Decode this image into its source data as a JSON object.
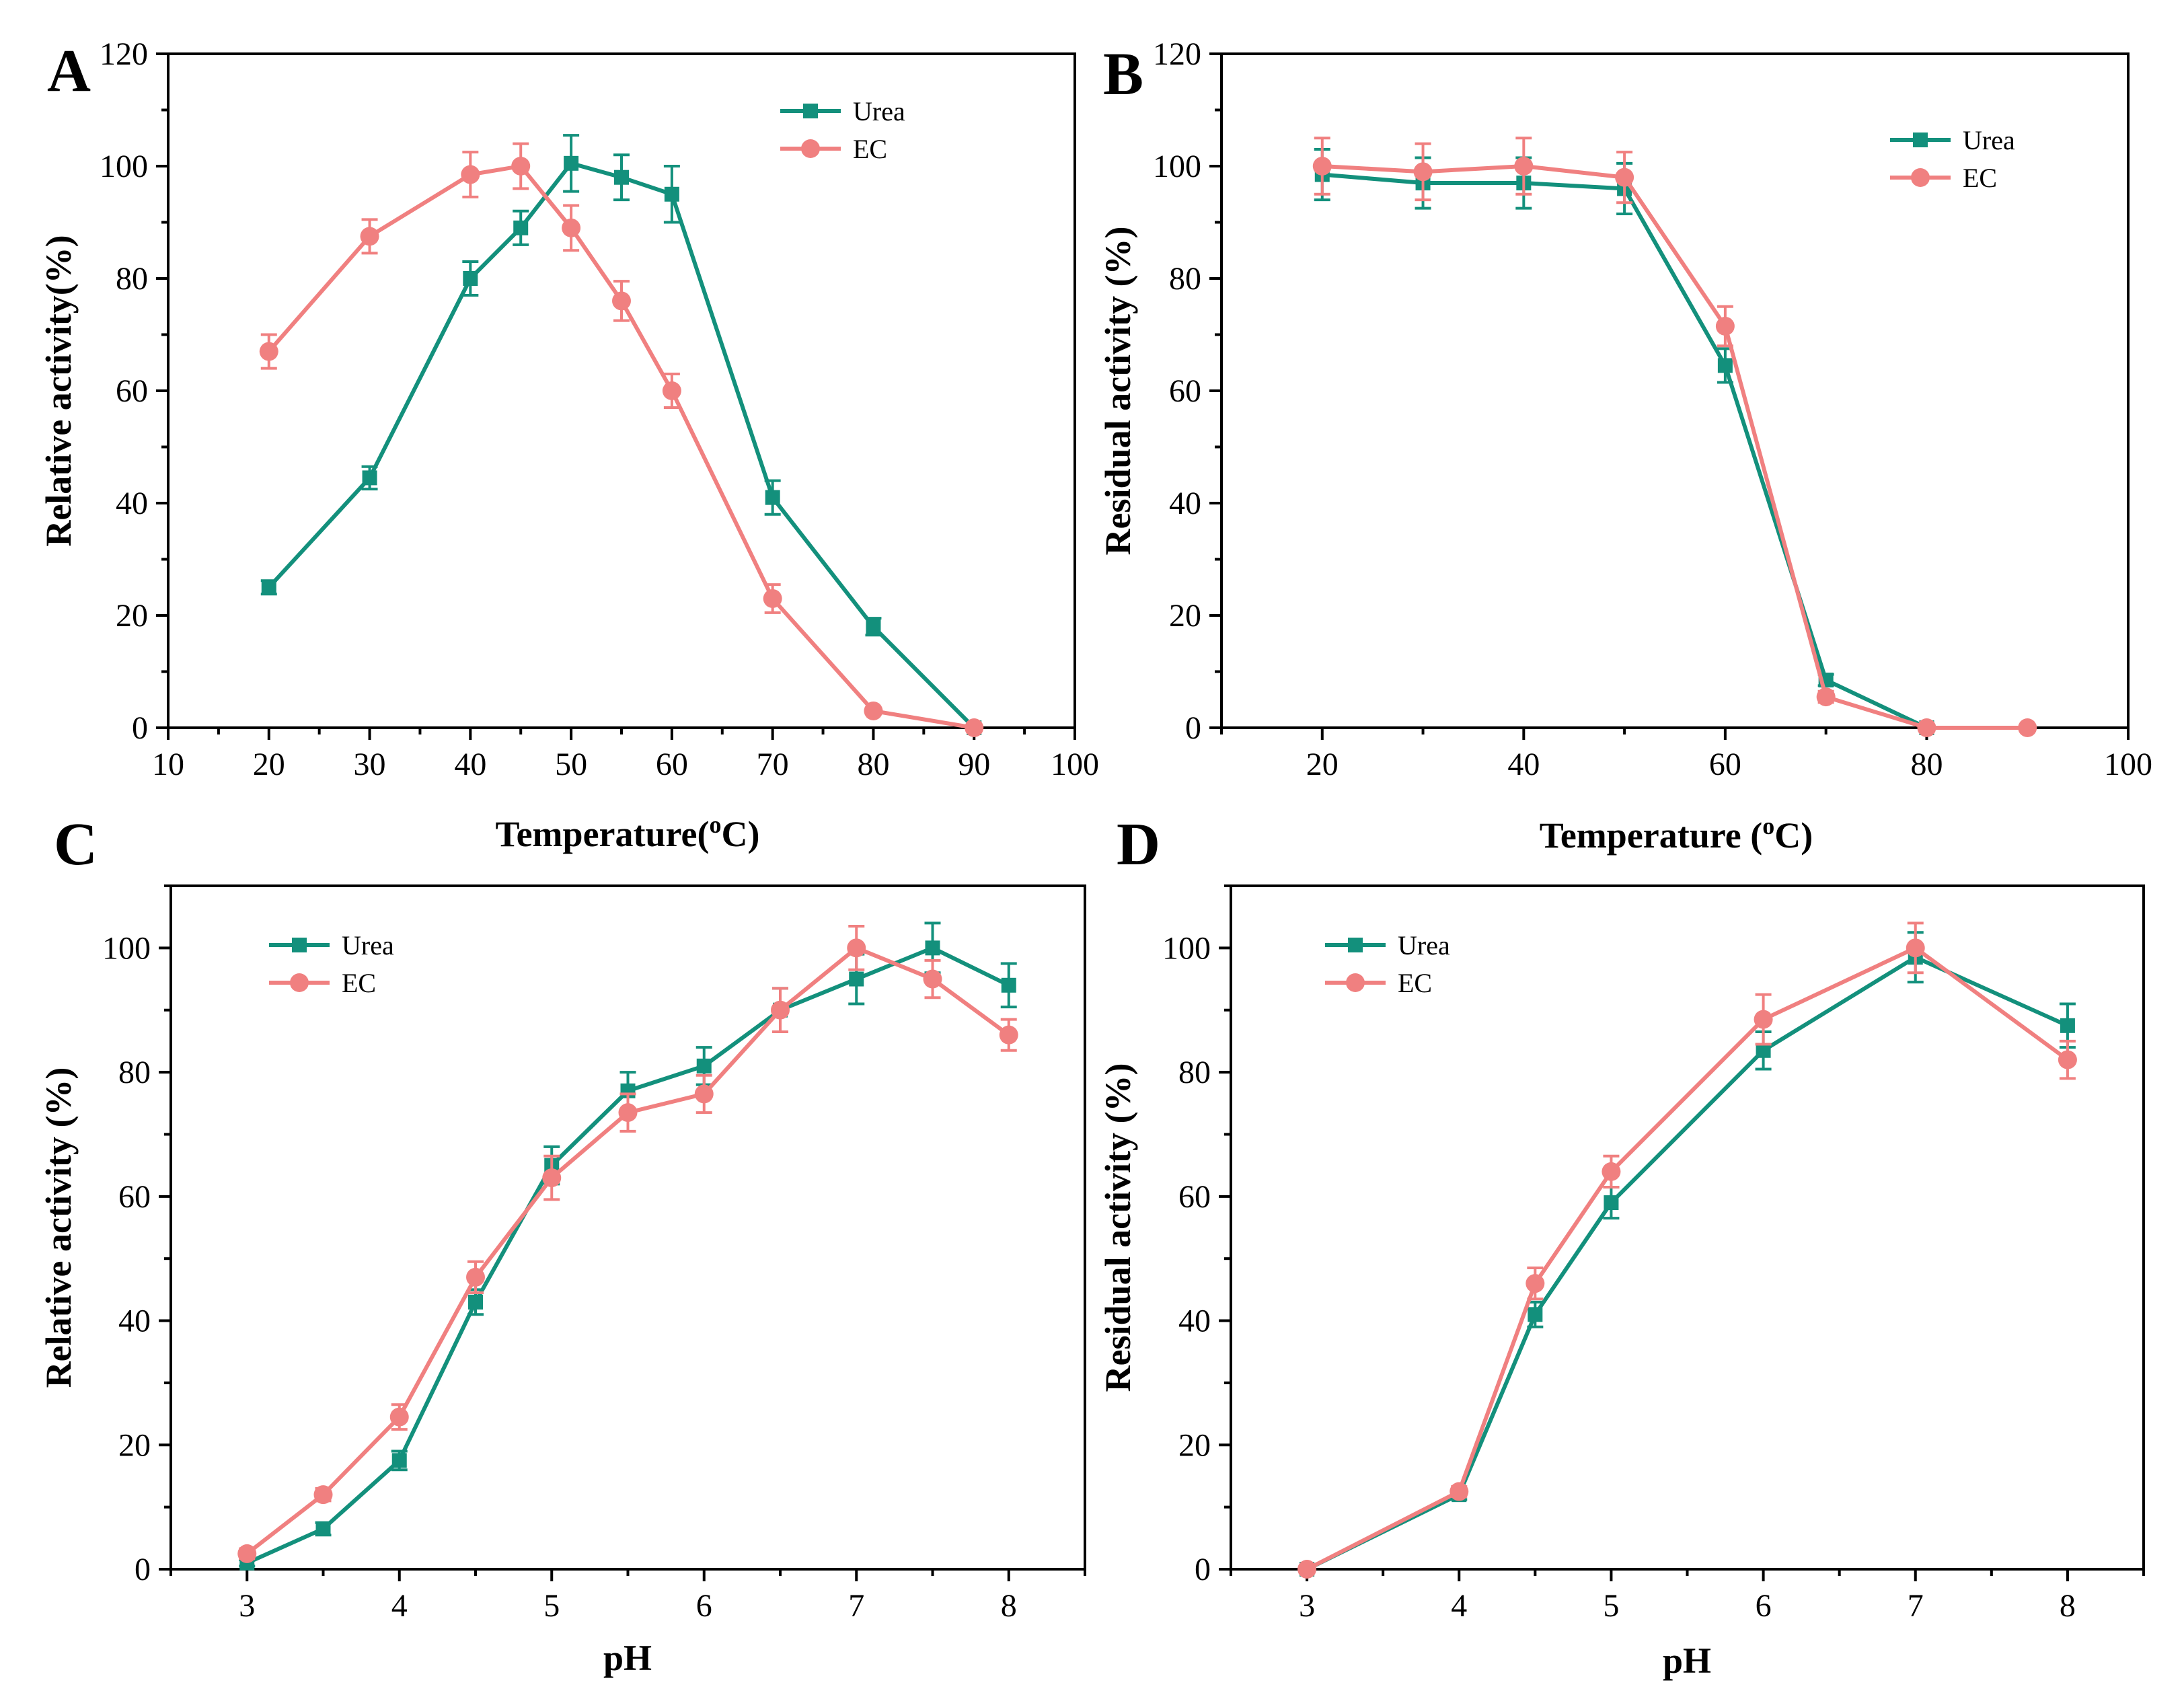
{
  "colors": {
    "urea": "#13907c",
    "ec": "#f08080"
  },
  "chart_data": [
    {
      "panel": "A",
      "type": "line",
      "xlabel": "Temperature(oC)",
      "xlabel_main": "Temperature(",
      "xlabel_sup": "o",
      "xlabel_end": "C)",
      "ylabel": "Relative activity(%)",
      "xlim": [
        10,
        100
      ],
      "ylim": [
        0,
        120
      ],
      "xticks": [
        10,
        20,
        30,
        40,
        50,
        60,
        70,
        80,
        90,
        100
      ],
      "yticks": [
        0,
        20,
        40,
        60,
        80,
        100,
        120
      ],
      "legend_position": "top-right",
      "series": [
        {
          "name": "Urea",
          "marker": "square",
          "x": [
            20,
            30,
            40,
            45,
            50,
            55,
            60,
            70,
            80,
            90
          ],
          "y": [
            25,
            44.5,
            80,
            89,
            100.5,
            98,
            95,
            41,
            18,
            0
          ],
          "err": [
            1.2,
            2,
            3,
            3,
            5,
            4,
            5,
            3,
            1.5,
            0
          ]
        },
        {
          "name": "EC",
          "marker": "circle",
          "x": [
            20,
            30,
            40,
            45,
            50,
            55,
            60,
            70,
            80,
            90
          ],
          "y": [
            67,
            87.5,
            98.5,
            100,
            89,
            76,
            60,
            23,
            3,
            0
          ],
          "err": [
            3,
            3,
            4,
            4,
            4,
            3.5,
            3,
            2.5,
            0.5,
            0
          ]
        }
      ]
    },
    {
      "panel": "B",
      "type": "line",
      "xlabel": "Temperature (oC)",
      "xlabel_main": "Temperature (",
      "xlabel_sup": "o",
      "xlabel_end": "C)",
      "ylabel": "Residual activity (%)",
      "xlim": [
        10,
        100
      ],
      "ylim": [
        0,
        120
      ],
      "xticks": [
        20,
        40,
        60,
        80,
        100
      ],
      "yticks": [
        0,
        20,
        40,
        60,
        80,
        100,
        120
      ],
      "legend_position": "top-right",
      "series": [
        {
          "name": "Urea",
          "marker": "square",
          "x": [
            20,
            30,
            40,
            50,
            60,
            70,
            80
          ],
          "y": [
            98.5,
            97,
            97,
            96,
            64.5,
            8.5,
            0
          ],
          "err": [
            4.5,
            4.5,
            4.5,
            4.5,
            3,
            1,
            0
          ]
        },
        {
          "name": "EC",
          "marker": "circle",
          "x": [
            20,
            30,
            40,
            50,
            60,
            70,
            80,
            90
          ],
          "y": [
            100,
            99,
            100,
            98,
            71.5,
            5.5,
            0,
            0
          ],
          "err": [
            5,
            5,
            5,
            4.5,
            3.5,
            1,
            0,
            0
          ]
        }
      ]
    },
    {
      "panel": "C",
      "type": "line",
      "xlabel": "pH",
      "ylabel": "Relative activity (%)",
      "xlim": [
        2.5,
        8.5
      ],
      "ylim": [
        0,
        110
      ],
      "xticks": [
        3,
        4,
        5,
        6,
        7,
        8
      ],
      "yticks": [
        0,
        20,
        40,
        60,
        80,
        100
      ],
      "legend_position": "top-left",
      "series": [
        {
          "name": "Urea",
          "marker": "square",
          "x": [
            3,
            3.5,
            4,
            4.5,
            5,
            5.5,
            6,
            6.5,
            7,
            7.5,
            8
          ],
          "y": [
            1,
            6.5,
            17.5,
            43,
            65,
            77,
            81,
            90,
            95,
            100,
            94
          ],
          "err": [
            0.5,
            1,
            1.5,
            2,
            3,
            3,
            3,
            3.5,
            4,
            4,
            3.5
          ]
        },
        {
          "name": "EC",
          "marker": "circle",
          "x": [
            3,
            3.5,
            4,
            4.5,
            5,
            5.5,
            6,
            6.5,
            7,
            7.5,
            8
          ],
          "y": [
            2.5,
            12,
            24.5,
            47,
            63,
            73.5,
            76.5,
            90,
            100,
            95,
            86
          ],
          "err": [
            0.8,
            1,
            2,
            2.5,
            3.5,
            3,
            3,
            3.5,
            3.5,
            3,
            2.5
          ]
        }
      ]
    },
    {
      "panel": "D",
      "type": "line",
      "xlabel": "pH",
      "ylabel": "Residual activity (%)",
      "xlim": [
        2.5,
        8.5
      ],
      "ylim": [
        0,
        110
      ],
      "xticks": [
        3,
        4,
        5,
        6,
        7,
        8
      ],
      "yticks": [
        0,
        20,
        40,
        60,
        80,
        100
      ],
      "legend_position": "top-left",
      "series": [
        {
          "name": "Urea",
          "marker": "square",
          "x": [
            3,
            4,
            4.5,
            5,
            6,
            7,
            8
          ],
          "y": [
            0,
            12,
            41,
            59,
            83.5,
            98.5,
            87.5
          ],
          "err": [
            0,
            0.8,
            2,
            2.5,
            3,
            4,
            3.5
          ]
        },
        {
          "name": "EC",
          "marker": "circle",
          "x": [
            3,
            4,
            4.5,
            5,
            6,
            7,
            8
          ],
          "y": [
            0,
            12.5,
            46,
            64,
            88.5,
            100,
            82
          ],
          "err": [
            0,
            0.8,
            2.5,
            2.5,
            4,
            4,
            3
          ]
        }
      ]
    }
  ]
}
